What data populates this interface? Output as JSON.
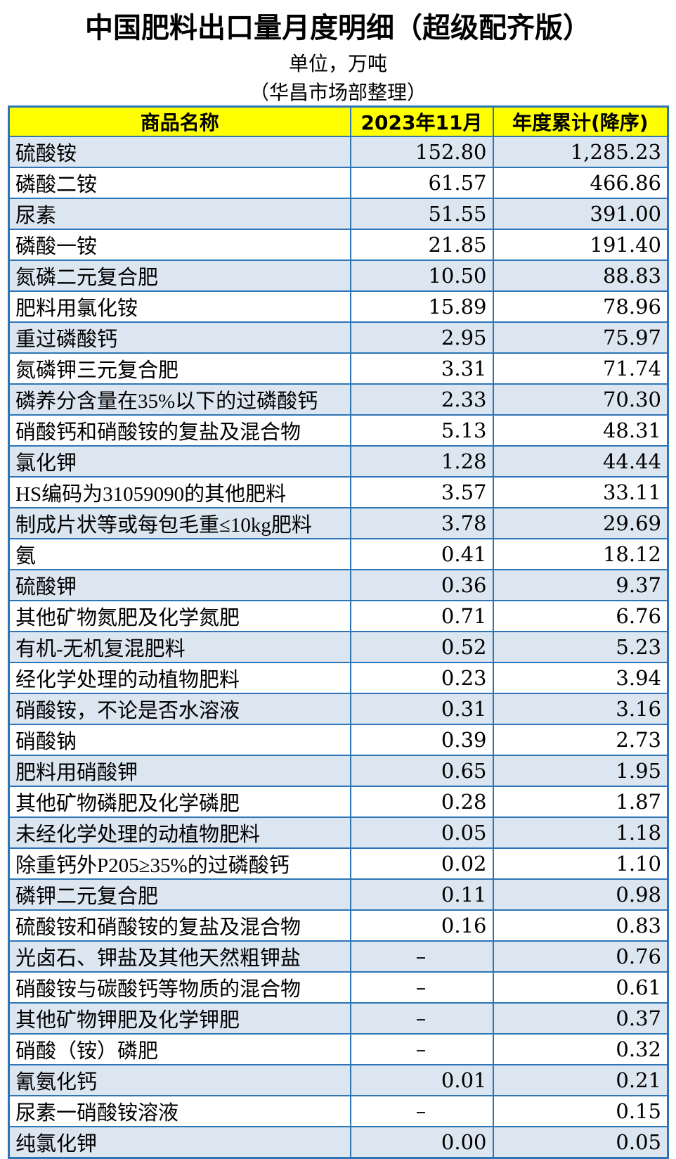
{
  "header": {
    "title": "中国肥料出口量月度明细（超级配齐版）",
    "unit": "单位，万吨",
    "source": "（华昌市场部整理）"
  },
  "table": {
    "columns": [
      "商品名称",
      "2023年11月",
      "年度累计(降序)"
    ],
    "rows": [
      [
        "硫酸铵",
        "152.80",
        "1,285.23"
      ],
      [
        "磷酸二铵",
        "61.57",
        "466.86"
      ],
      [
        "尿素",
        "51.55",
        "391.00"
      ],
      [
        "磷酸一铵",
        "21.85",
        "191.40"
      ],
      [
        "氮磷二元复合肥",
        "10.50",
        "88.83"
      ],
      [
        "肥料用氯化铵",
        "15.89",
        "78.96"
      ],
      [
        "重过磷酸钙",
        "2.95",
        "75.97"
      ],
      [
        "氮磷钾三元复合肥",
        "3.31",
        "71.74"
      ],
      [
        "磷养分含量在35%以下的过磷酸钙",
        "2.33",
        "70.30"
      ],
      [
        "硝酸钙和硝酸铵的复盐及混合物",
        "5.13",
        "48.31"
      ],
      [
        "氯化钾",
        "1.28",
        "44.44"
      ],
      [
        "HS编码为31059090的其他肥料",
        "3.57",
        "33.11"
      ],
      [
        "制成片状等或每包毛重≤10kg肥料",
        "3.78",
        "29.69"
      ],
      [
        "氨",
        "0.41",
        "18.12"
      ],
      [
        "硫酸钾",
        "0.36",
        "9.37"
      ],
      [
        "其他矿物氮肥及化学氮肥",
        "0.71",
        "6.76"
      ],
      [
        "有机-无机复混肥料",
        "0.52",
        "5.23"
      ],
      [
        "经化学处理的动植物肥料",
        "0.23",
        "3.94"
      ],
      [
        "硝酸铵，不论是否水溶液",
        "0.31",
        "3.16"
      ],
      [
        "硝酸钠",
        "0.39",
        "2.73"
      ],
      [
        "肥料用硝酸钾",
        "0.65",
        "1.95"
      ],
      [
        "其他矿物磷肥及化学磷肥",
        "0.28",
        "1.87"
      ],
      [
        "未经化学处理的动植物肥料",
        "0.05",
        "1.18"
      ],
      [
        "除重钙外P205≥35%的过磷酸钙",
        "0.02",
        "1.10"
      ],
      [
        "磷钾二元复合肥",
        "0.11",
        "0.98"
      ],
      [
        "硫酸铵和硝酸铵的复盐及混合物",
        "0.16",
        "0.83"
      ],
      [
        "光卤石、钾盐及其他天然粗钾盐",
        "–",
        "0.76"
      ],
      [
        "硝酸铵与碳酸钙等物质的混合物",
        "–",
        "0.61"
      ],
      [
        "其他矿物钾肥及化学钾肥",
        "–",
        "0.37"
      ],
      [
        "硝酸（铵）磷肥",
        "–",
        "0.32"
      ],
      [
        "氰氨化钙",
        "0.01",
        "0.21"
      ],
      [
        "尿素一硝酸铵溶液",
        "–",
        "0.15"
      ],
      [
        "纯氯化钾",
        "0.00",
        "0.05"
      ]
    ]
  }
}
